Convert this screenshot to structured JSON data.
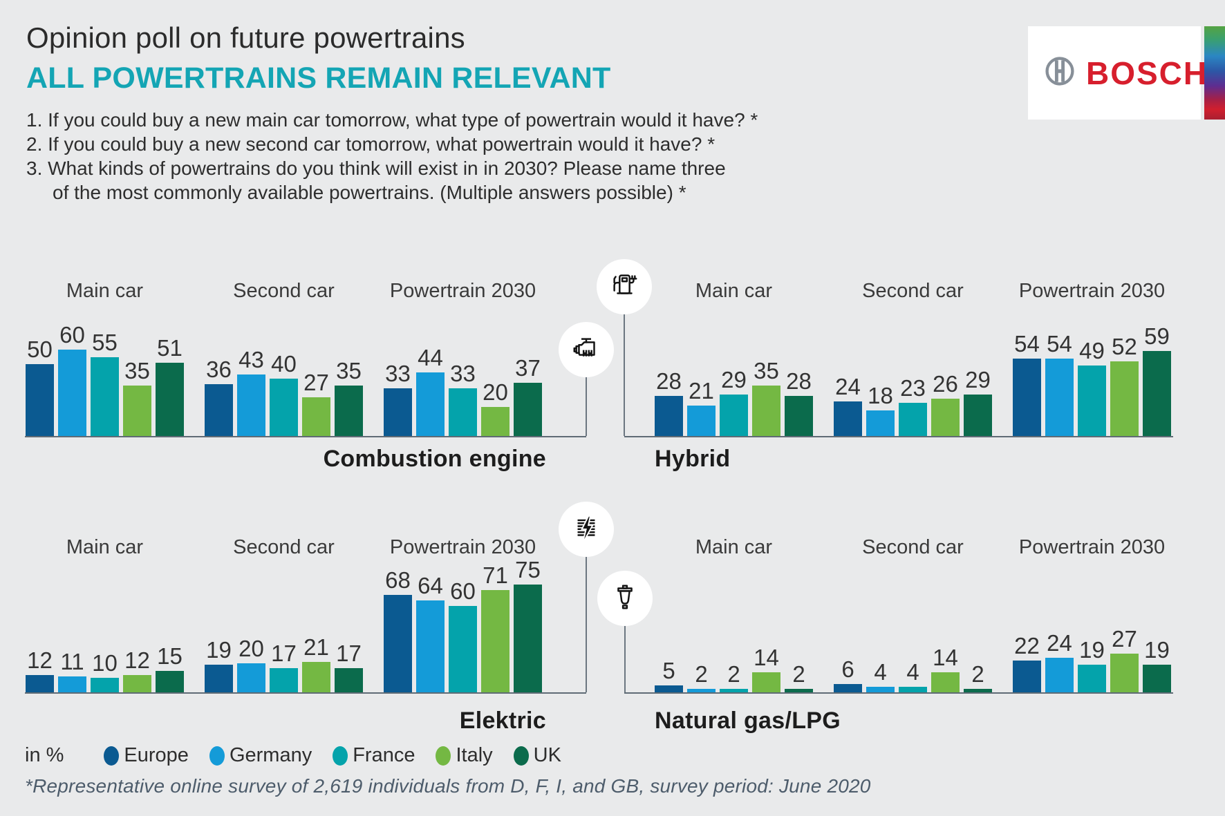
{
  "header": {
    "title": "Opinion poll on future powertrains",
    "subtitle": "ALL POWERTRAINS REMAIN RELEVANT",
    "questions": [
      "1. If you could buy a new main car tomorrow, what type of powertrain would it have? *",
      "2. If you could buy a new second car tomorrow, what powertrain would it have? *",
      "3. What kinds of powertrains do you think will exist in in 2030? Please name three",
      "of the most commonly available powertrains. (Multiple answers possible) *"
    ]
  },
  "logo": {
    "brand": "BOSCH"
  },
  "colors": {
    "accent_teal": "#14a5b4",
    "bosch_red": "#d71f2d",
    "baseline": "#5f6b75"
  },
  "legend": {
    "prefix": "in %",
    "items": [
      {
        "label": "Europe",
        "color": "#0b5a91"
      },
      {
        "label": "Germany",
        "color": "#149bd8"
      },
      {
        "label": "France",
        "color": "#04a3ab"
      },
      {
        "label": "Italy",
        "color": "#74b843"
      },
      {
        "label": "UK",
        "color": "#0b6b4c"
      }
    ]
  },
  "footnote": "*Representative online survey of 2,619 individuals from D, F, I, and GB, survey period: June 2020",
  "chart_data": {
    "type": "bar",
    "unit": "%",
    "ylim": [
      0,
      80
    ],
    "grid": false,
    "value_labels": true,
    "group_labels": [
      "Main car",
      "Second car",
      "Powertrain 2030"
    ],
    "series": [
      "Europe",
      "Germany",
      "France",
      "Italy",
      "UK"
    ],
    "series_colors": [
      "#0b5a91",
      "#149bd8",
      "#04a3ab",
      "#74b843",
      "#0b6b4c"
    ],
    "charts": [
      {
        "title": "Combustion engine",
        "icon": "engine-icon",
        "values": [
          [
            50,
            60,
            55,
            35,
            51
          ],
          [
            36,
            43,
            40,
            27,
            35
          ],
          [
            33,
            44,
            33,
            20,
            37
          ]
        ]
      },
      {
        "title": "Hybrid",
        "icon": "ev-charging-station-icon",
        "values": [
          [
            28,
            21,
            29,
            35,
            28
          ],
          [
            24,
            18,
            23,
            26,
            29
          ],
          [
            54,
            54,
            49,
            52,
            59
          ]
        ]
      },
      {
        "title": "Elektric",
        "icon": "battery-lightning-icon",
        "values": [
          [
            12,
            11,
            10,
            12,
            15
          ],
          [
            19,
            20,
            17,
            21,
            17
          ],
          [
            68,
            64,
            60,
            71,
            75
          ]
        ]
      },
      {
        "title": "Natural gas/LPG",
        "icon": "fuel-filter-icon",
        "values": [
          [
            5,
            2,
            2,
            14,
            2
          ],
          [
            6,
            4,
            4,
            14,
            2
          ],
          [
            22,
            24,
            19,
            27,
            19
          ]
        ]
      }
    ]
  }
}
